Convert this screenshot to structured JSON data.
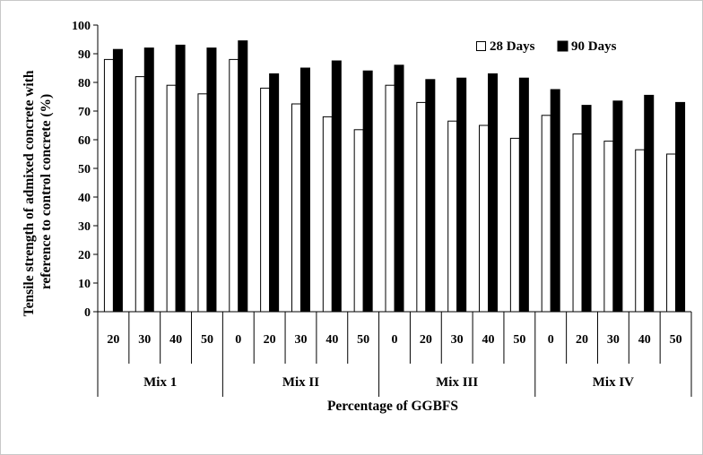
{
  "chart_data": {
    "type": "bar",
    "title": "",
    "xlabel": "Percentage of GGBFS",
    "ylabel": "Tensile strength of admixed concrete with reference to control concrete (%)",
    "ylabel_lines": [
      "Tensile strength of admixed concrete with",
      "reference to control concrete (%)"
    ],
    "ylim": [
      0,
      100
    ],
    "yticks": [
      "0",
      "10",
      "20",
      "30",
      "40",
      "50",
      "60",
      "70",
      "80",
      "90",
      "100"
    ],
    "groups": [
      {
        "name": "Mix 1",
        "categories": [
          "20",
          "30",
          "40",
          "50"
        ]
      },
      {
        "name": "Mix II",
        "categories": [
          "0",
          "20",
          "30",
          "40",
          "50"
        ]
      },
      {
        "name": "Mix III",
        "categories": [
          "0",
          "20",
          "30",
          "40",
          "50"
        ]
      },
      {
        "name": "Mix IV",
        "categories": [
          "0",
          "20",
          "30",
          "40",
          "50"
        ]
      }
    ],
    "series": [
      {
        "name": "28 Days",
        "color": "#ffffff",
        "values": [
          88,
          82,
          79,
          76,
          88,
          78,
          72.5,
          68,
          63.5,
          79,
          73,
          66.5,
          65,
          60.5,
          68.5,
          62,
          59.5,
          56.5,
          55
        ]
      },
      {
        "name": "90 Days",
        "color": "#000000",
        "values": [
          91.5,
          92,
          93,
          92,
          94.5,
          83,
          85,
          87.5,
          84,
          86,
          81,
          81.5,
          83,
          81.5,
          77.5,
          72,
          73.5,
          75.5,
          73
        ]
      }
    ],
    "legend_position": "top-right",
    "grid": false
  }
}
